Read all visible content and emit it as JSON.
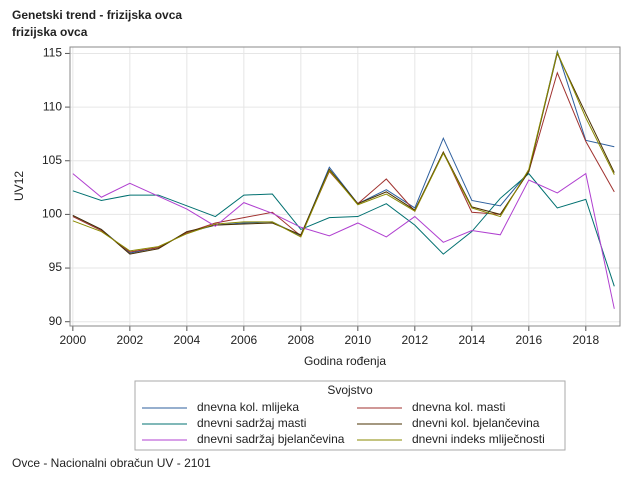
{
  "chart_data": {
    "type": "line",
    "title": "Genetski trend - frizijska ovca",
    "subtitle": "frizijska ovca",
    "x_label": "Godina rođenja",
    "y_label": "UV12",
    "legend_title": "Svojstvo",
    "footnote": "Ovce - Nacionalni obračun UV - 2101",
    "x": [
      2000,
      2001,
      2002,
      2003,
      2004,
      2005,
      2006,
      2007,
      2008,
      2009,
      2010,
      2011,
      2012,
      2013,
      2014,
      2015,
      2016,
      2017,
      2018,
      2019
    ],
    "xlim": [
      1999.9,
      2019.2
    ],
    "xticks": [
      2000,
      2002,
      2004,
      2006,
      2008,
      2010,
      2012,
      2014,
      2016,
      2018
    ],
    "ylim": [
      89.6,
      115.6
    ],
    "yticks": [
      90,
      95,
      100,
      105,
      110,
      115
    ],
    "grid": true,
    "series": [
      {
        "name": "dnevna kol. mlijeka",
        "color": "#2d5f9e",
        "values": [
          99.9,
          98.6,
          96.4,
          96.9,
          98.3,
          99.0,
          99.2,
          99.3,
          98.0,
          104.4,
          101.0,
          102.3,
          100.6,
          107.1,
          101.3,
          100.8,
          104.0,
          115.2,
          106.9,
          106.3
        ]
      },
      {
        "name": "dnevna kol. masti",
        "color": "#a0322f",
        "values": [
          99.8,
          98.5,
          96.5,
          96.9,
          98.3,
          99.2,
          99.7,
          100.2,
          98.0,
          104.0,
          101.0,
          103.3,
          100.3,
          105.8,
          100.2,
          100.0,
          104.0,
          113.2,
          106.8,
          102.1
        ]
      },
      {
        "name": "dnevni sadržaj masti",
        "color": "#007070",
        "values": [
          102.2,
          101.3,
          101.8,
          101.8,
          100.8,
          99.8,
          101.8,
          101.9,
          98.6,
          99.7,
          99.8,
          101.0,
          99.0,
          96.3,
          98.4,
          101.5,
          103.8,
          100.6,
          101.4,
          93.3
        ]
      },
      {
        "name": "dnevni kol. bjelančevina",
        "color": "#4a3000",
        "values": [
          99.9,
          98.6,
          96.3,
          96.8,
          98.4,
          99.0,
          99.1,
          99.2,
          98.1,
          104.2,
          101.0,
          102.1,
          100.4,
          105.8,
          100.7,
          100.0,
          104.0,
          115.0,
          109.4,
          103.9
        ]
      },
      {
        "name": "dnevni sadržaj bjelančevina",
        "color": "#b040d0",
        "values": [
          103.8,
          101.6,
          102.9,
          101.7,
          100.5,
          98.9,
          101.1,
          100.1,
          98.8,
          98.0,
          99.2,
          97.9,
          99.8,
          97.4,
          98.5,
          98.1,
          103.2,
          102.0,
          103.8,
          91.2
        ]
      },
      {
        "name": "dnevni indeks mliječnosti",
        "color": "#8a8a00",
        "values": [
          99.4,
          98.4,
          96.6,
          97.0,
          98.2,
          99.1,
          99.3,
          99.3,
          97.9,
          104.1,
          100.9,
          101.9,
          100.3,
          105.7,
          100.6,
          99.8,
          104.2,
          115.1,
          109.0,
          103.7
        ]
      }
    ]
  }
}
